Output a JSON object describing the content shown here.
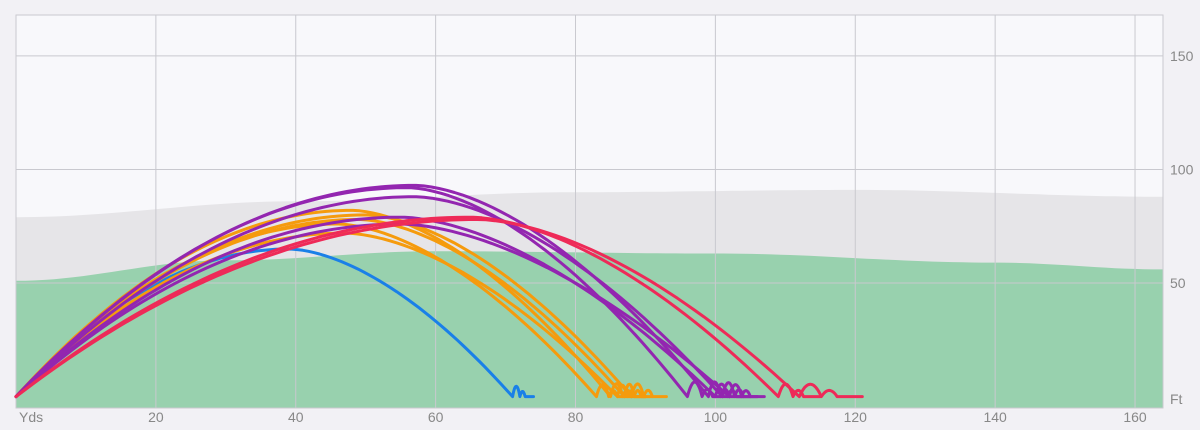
{
  "chart_data": {
    "type": "line",
    "x_unit_label": "Yds",
    "y_unit_label": "Ft",
    "xlim": [
      0,
      164
    ],
    "ylim": [
      -5,
      168
    ],
    "x_ticks": [
      20,
      40,
      60,
      80,
      100,
      120,
      140,
      160
    ],
    "y_ticks": [
      50,
      100,
      150
    ],
    "colors": {
      "plot_bg": "#f8f8fb",
      "grid": "#c9c9cf",
      "gray_band": "#e6e5e8",
      "green_zone": "#98d1ae",
      "blue": "#1a80e8",
      "orange": "#f59b0d",
      "purple": "#9326b0",
      "red": "#ee2a58"
    },
    "zones": {
      "gray_band_top": [
        [
          0,
          79
        ],
        [
          40,
          86
        ],
        [
          80,
          90
        ],
        [
          120,
          91
        ],
        [
          164,
          88
        ]
      ],
      "green_zone_top": [
        [
          0,
          51
        ],
        [
          30,
          60
        ],
        [
          60,
          64
        ],
        [
          100,
          63
        ],
        [
          140,
          59
        ],
        [
          164,
          56
        ]
      ]
    },
    "series": [
      {
        "color_key": "blue",
        "carry": 71,
        "apex": 65,
        "apex_x": 39,
        "total": 74
      },
      {
        "color_key": "orange",
        "carry": 83,
        "apex": 76,
        "apex_x": 46,
        "total": 88
      },
      {
        "color_key": "orange",
        "carry": 85,
        "apex": 82,
        "apex_x": 48,
        "total": 90
      },
      {
        "color_key": "orange",
        "carry": 87,
        "apex": 78,
        "apex_x": 49,
        "total": 91
      },
      {
        "color_key": "orange",
        "carry": 88,
        "apex": 80,
        "apex_x": 50,
        "total": 93
      },
      {
        "color_key": "orange",
        "carry": 86,
        "apex": 72,
        "apex_x": 47,
        "total": 90
      },
      {
        "color_key": "purple",
        "carry": 96,
        "apex": 92,
        "apex_x": 56,
        "total": 102
      },
      {
        "color_key": "purple",
        "carry": 99,
        "apex": 93,
        "apex_x": 57,
        "total": 104
      },
      {
        "color_key": "purple",
        "carry": 100,
        "apex": 79,
        "apex_x": 55,
        "total": 105
      },
      {
        "color_key": "purple",
        "carry": 101,
        "apex": 88,
        "apex_x": 57,
        "total": 106
      },
      {
        "color_key": "purple",
        "carry": 102,
        "apex": 76,
        "apex_x": 55,
        "total": 107
      },
      {
        "color_key": "red",
        "carry": 109,
        "apex": 79,
        "apex_x": 65,
        "total": 115
      },
      {
        "color_key": "red",
        "carry": 112,
        "apex": 78,
        "apex_x": 66,
        "total": 121
      }
    ]
  }
}
